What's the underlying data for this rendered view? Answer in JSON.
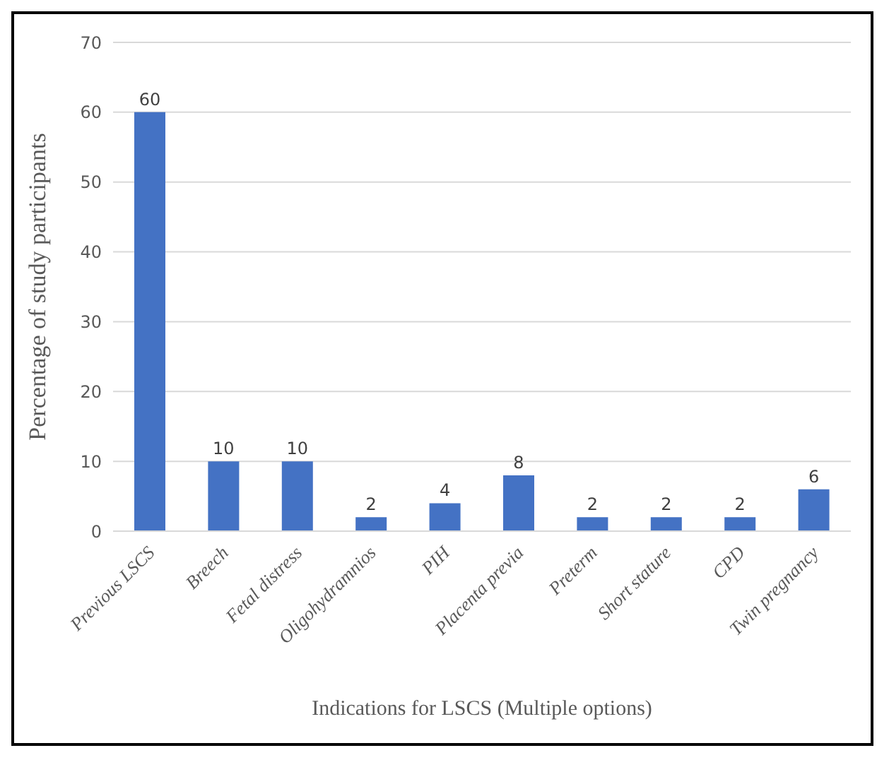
{
  "chart_data": {
    "type": "bar",
    "xlabel": "Indications for LSCS (Multiple options)",
    "ylabel": "Percentage of study participants",
    "categories": [
      "Previous LSCS",
      "Breech",
      "Fetal distress",
      "Oligohydramnios",
      "PIH",
      "Placenta previa",
      "Preterm",
      "Short stature",
      "CPD",
      "Twin pregnancy"
    ],
    "values": [
      60,
      10,
      10,
      2,
      4,
      8,
      2,
      2,
      2,
      6
    ],
    "color": "#4472c4",
    "ylim": [
      0,
      70
    ],
    "yticks": [
      0,
      10,
      20,
      30,
      40,
      50,
      60,
      70
    ],
    "grid": "y",
    "data_labels": true
  }
}
